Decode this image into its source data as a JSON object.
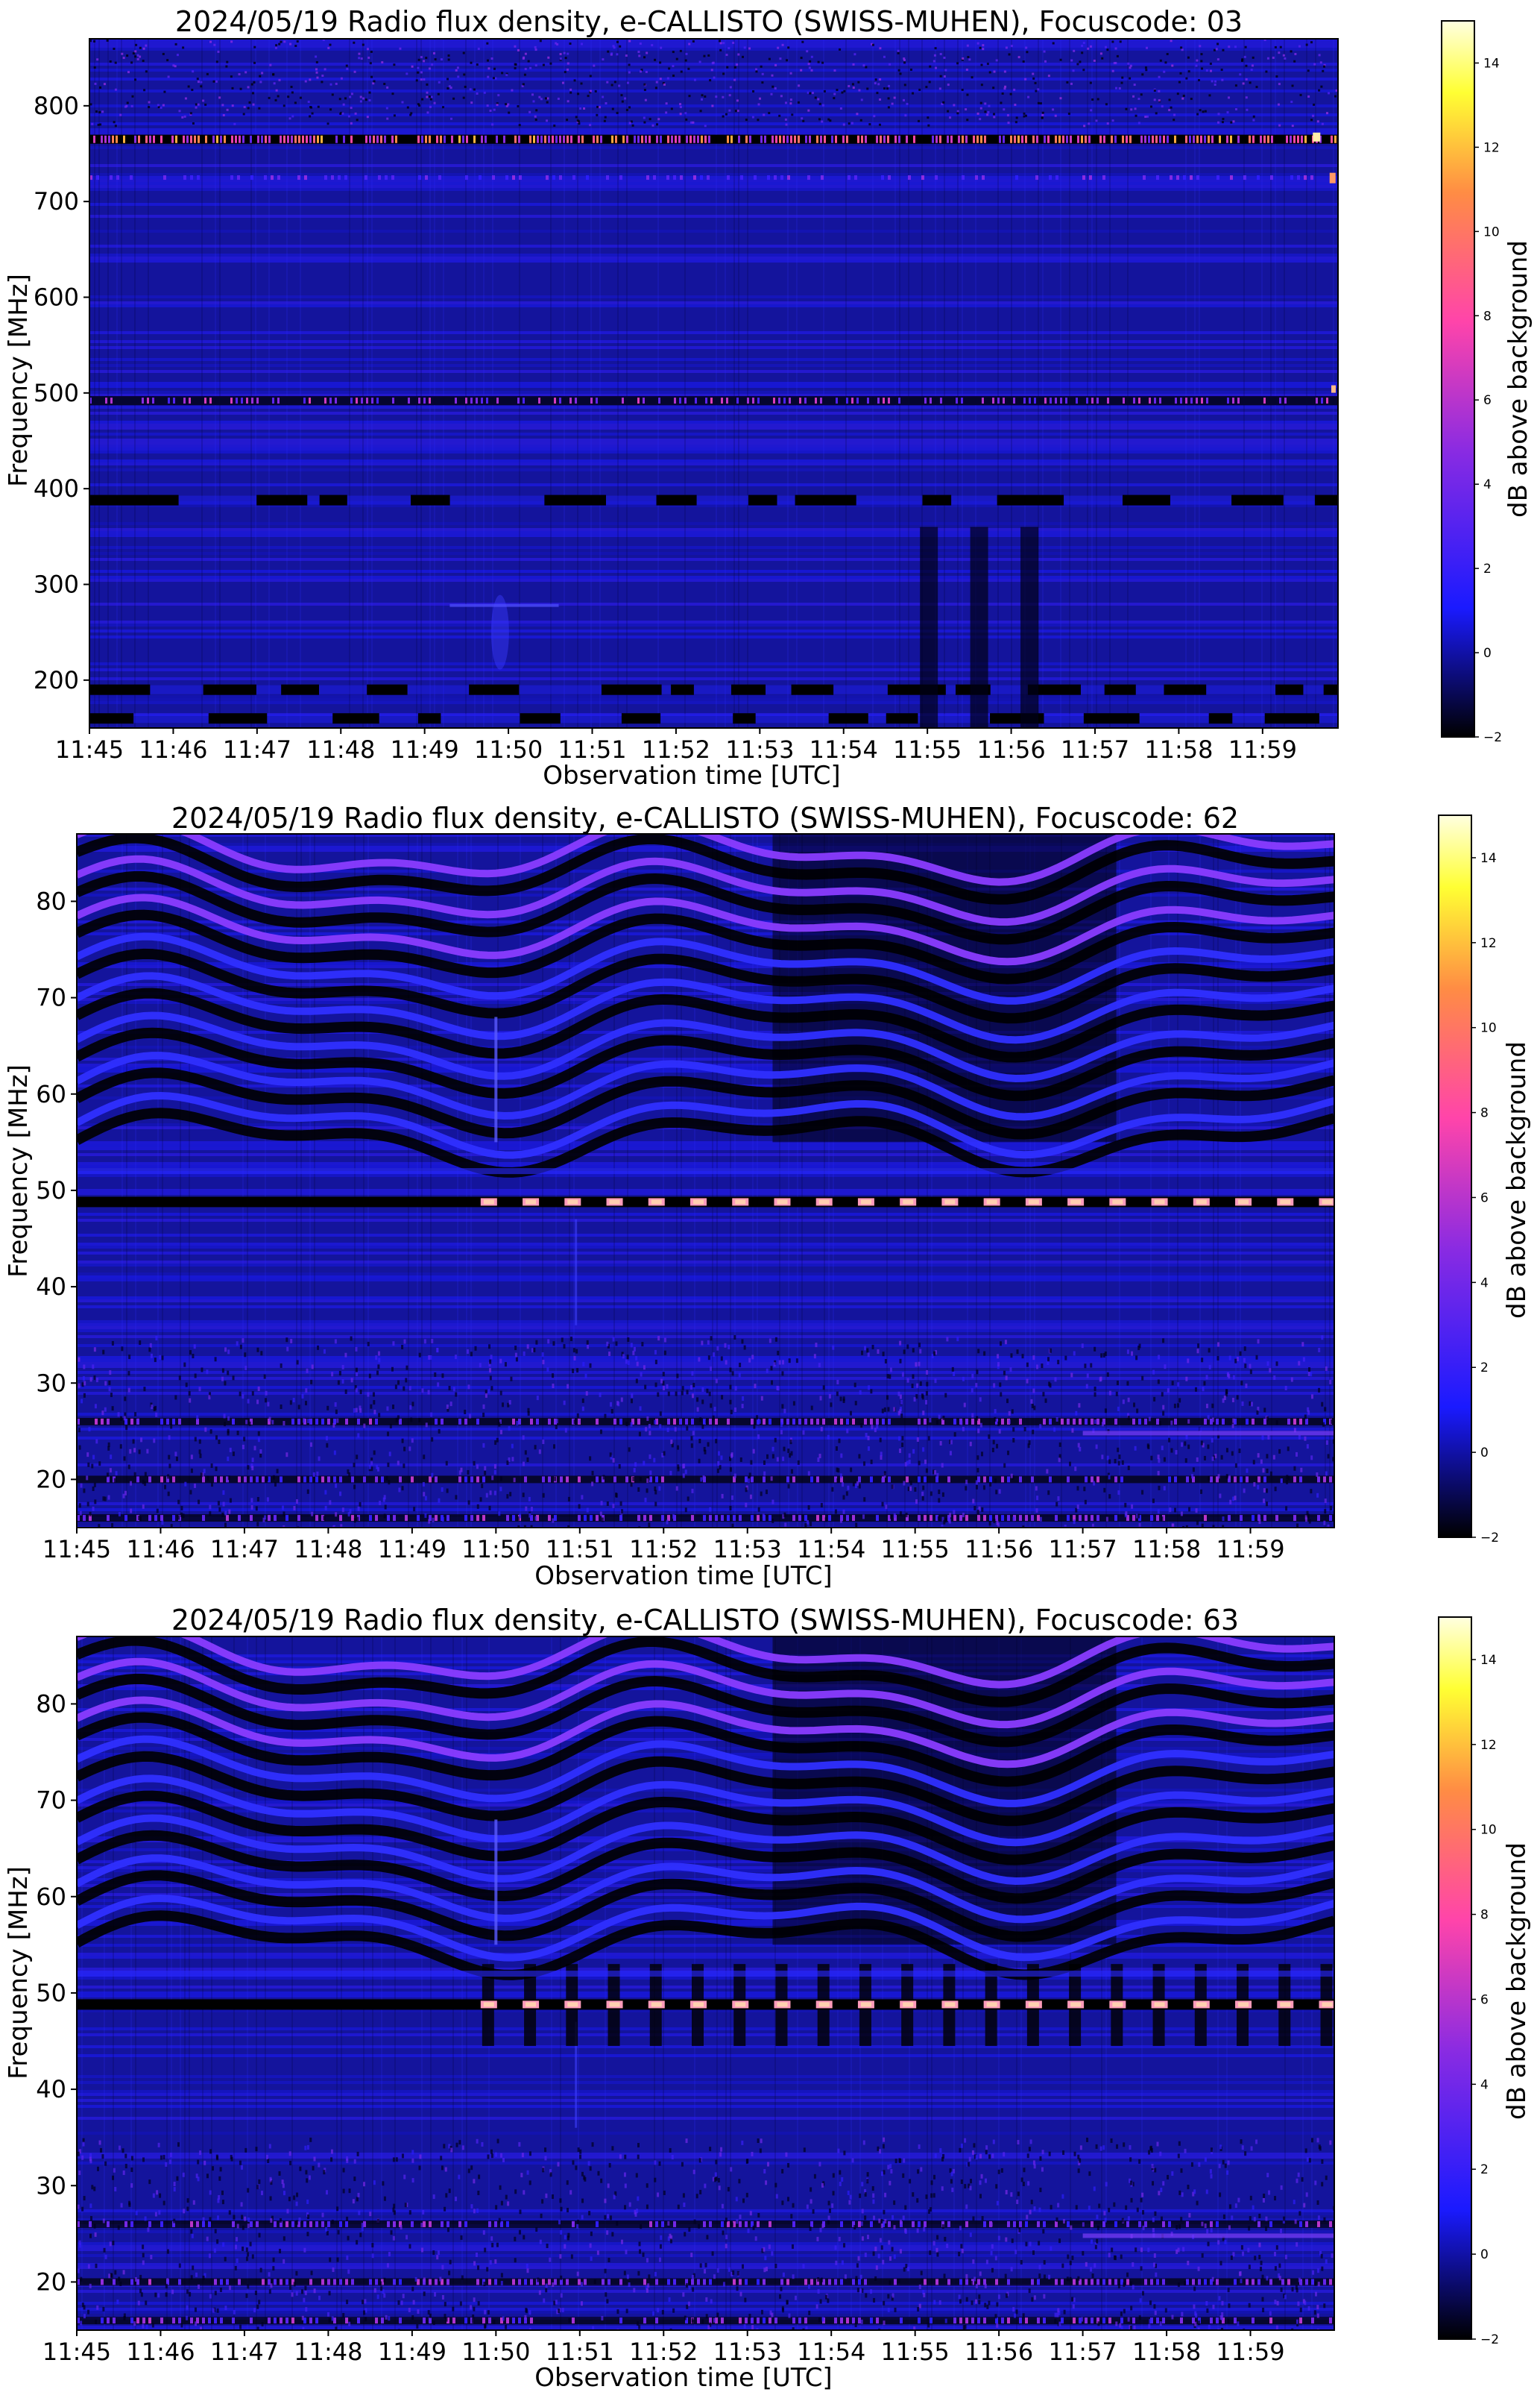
{
  "colors": {
    "colormap": [
      "#000000",
      "#2222ff",
      "#8a2be2",
      "#ff44aa",
      "#ff8844",
      "#ffff00",
      "#ffffff"
    ],
    "background": "#ffffff"
  },
  "chart_data": [
    {
      "type": "heatmap",
      "title": "2024/05/19  Radio flux density, e-CALLISTO (SWISS-MUHEN), Focuscode: 03",
      "xlabel": "Observation time [UTC]",
      "ylabel": "Frequency [MHz]",
      "colorbar_label": "dB above background",
      "x_ticks": [
        "11:45",
        "11:46",
        "11:47",
        "11:48",
        "11:49",
        "11:50",
        "11:51",
        "11:52",
        "11:53",
        "11:54",
        "11:55",
        "11:56",
        "11:57",
        "11:58",
        "11:59"
      ],
      "xlim": [
        0,
        14.9
      ],
      "y_ticks": [
        200,
        300,
        400,
        500,
        600,
        700,
        800
      ],
      "ylim": [
        150,
        870
      ],
      "colorbar_ticks": [
        -2,
        0,
        2,
        4,
        6,
        8,
        10,
        12,
        14
      ],
      "clim": [
        -2,
        15
      ],
      "features": {
        "hot_bands_mhz": [
          765,
          492,
          725
        ],
        "dark_bands_mhz": [
          388,
          190,
          160
        ],
        "dark_columns_min": [
          10.0,
          10.6,
          11.2
        ]
      }
    },
    {
      "type": "heatmap",
      "title": "2024/05/19  Radio flux density, e-CALLISTO (SWISS-MUHEN), Focuscode: 62",
      "xlabel": "Observation time [UTC]",
      "ylabel": "Frequency [MHz]",
      "colorbar_label": "dB above background",
      "x_ticks": [
        "11:45",
        "11:46",
        "11:47",
        "11:48",
        "11:49",
        "11:50",
        "11:51",
        "11:52",
        "11:53",
        "11:54",
        "11:55",
        "11:56",
        "11:57",
        "11:58",
        "11:59"
      ],
      "xlim": [
        0,
        15.0
      ],
      "y_ticks": [
        20,
        30,
        40,
        50,
        60,
        70,
        80
      ],
      "ylim": [
        15,
        87
      ],
      "colorbar_ticks": [
        -2,
        0,
        2,
        4,
        6,
        8,
        10,
        12,
        14
      ],
      "clim": [
        -2,
        15
      ],
      "features": {
        "pulsed_line_mhz": 48.8,
        "pulse_start_min": 4.8,
        "wave_bands_mhz": [
          57,
          61,
          65,
          69,
          73,
          77,
          81,
          85
        ],
        "spike_min": 5.0
      }
    },
    {
      "type": "heatmap",
      "title": "2024/05/19  Radio flux density, e-CALLISTO (SWISS-MUHEN), Focuscode: 63",
      "xlabel": "Observation time [UTC]",
      "ylabel": "Frequency [MHz]",
      "colorbar_label": "dB above background",
      "x_ticks": [
        "11:45",
        "11:46",
        "11:47",
        "11:48",
        "11:49",
        "11:50",
        "11:51",
        "11:52",
        "11:53",
        "11:54",
        "11:55",
        "11:56",
        "11:57",
        "11:58",
        "11:59"
      ],
      "xlim": [
        0,
        15.0
      ],
      "y_ticks": [
        20,
        30,
        40,
        50,
        60,
        70,
        80
      ],
      "ylim": [
        15,
        87
      ],
      "colorbar_ticks": [
        -2,
        0,
        2,
        4,
        6,
        8,
        10,
        12,
        14
      ],
      "clim": [
        -2,
        15
      ],
      "features": {
        "pulsed_line_mhz": 48.8,
        "pulse_start_min": 4.8,
        "wave_bands_mhz": [
          57,
          61,
          65,
          69,
          73,
          77,
          81,
          85
        ],
        "spike_min": 5.0
      }
    }
  ]
}
